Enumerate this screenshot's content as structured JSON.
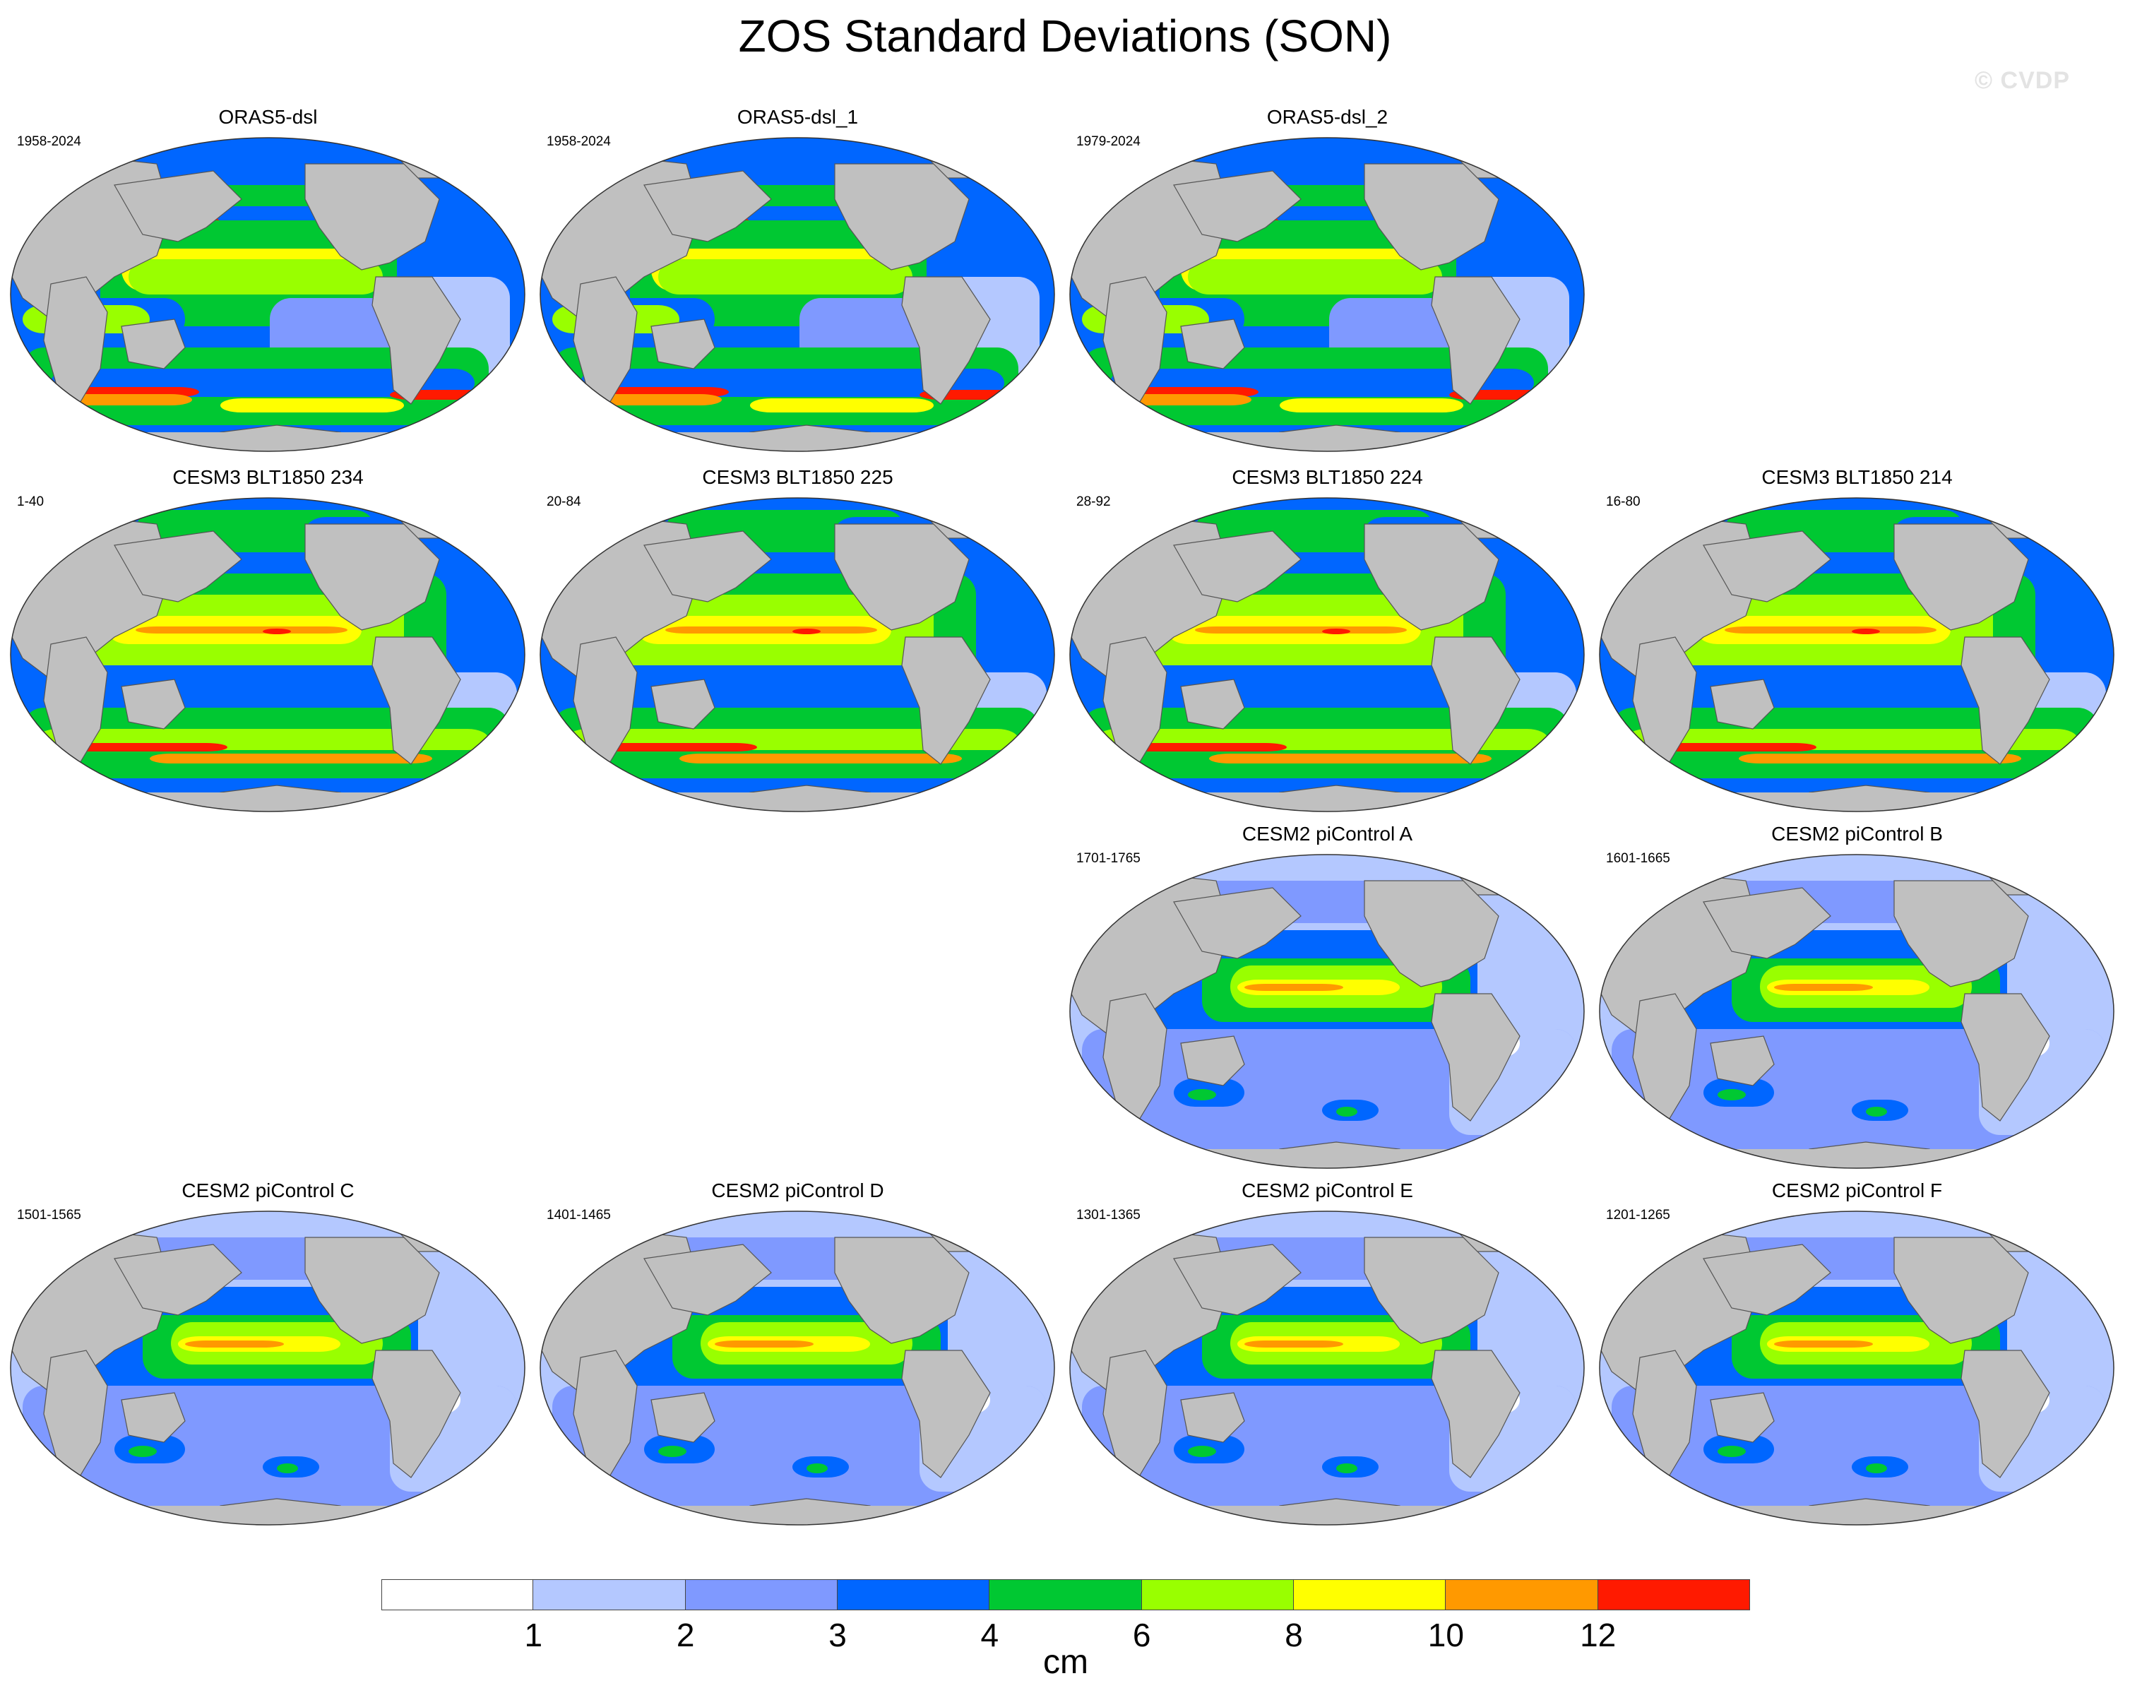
{
  "figure": {
    "title": "ZOS Standard Deviations (SON)",
    "watermark": "© CVDP"
  },
  "colorbar": {
    "units": "cm",
    "boundaries": [
      "1",
      "2",
      "3",
      "4",
      "6",
      "8",
      "10",
      "12"
    ],
    "colors": [
      "#ffffff",
      "#b4c8ff",
      "#7f99ff",
      "#0066ff",
      "#00c832",
      "#99ff00",
      "#ffff00",
      "#ff9900",
      "#ff1a00"
    ]
  },
  "panels": [
    {
      "title": "ORAS5-dsl",
      "years": "1958-2024",
      "scheme": "obs"
    },
    {
      "title": "ORAS5-dsl_1",
      "years": "1958-2024",
      "scheme": "obs"
    },
    {
      "title": "ORAS5-dsl_2",
      "years": "1979-2024",
      "scheme": "obs"
    },
    {
      "title": "CESM3 BLT1850 234",
      "years": "1-40",
      "scheme": "cesm3"
    },
    {
      "title": "CESM3 BLT1850 225",
      "years": "20-84",
      "scheme": "cesm3"
    },
    {
      "title": "CESM3 BLT1850 224",
      "years": "28-92",
      "scheme": "cesm3"
    },
    {
      "title": "CESM3 BLT1850 214",
      "years": "16-80",
      "scheme": "cesm3"
    },
    {
      "title": "CESM2 piControl A",
      "years": "1701-1765",
      "scheme": "cesm2"
    },
    {
      "title": "CESM2 piControl B",
      "years": "1601-1665",
      "scheme": "cesm2"
    },
    {
      "title": "CESM2 piControl C",
      "years": "1501-1565",
      "scheme": "cesm2"
    },
    {
      "title": "CESM2 piControl D",
      "years": "1401-1465",
      "scheme": "cesm2"
    },
    {
      "title": "CESM2 piControl E",
      "years": "1301-1365",
      "scheme": "cesm2"
    },
    {
      "title": "CESM2 piControl F",
      "years": "1201-1265",
      "scheme": "cesm2"
    }
  ]
}
